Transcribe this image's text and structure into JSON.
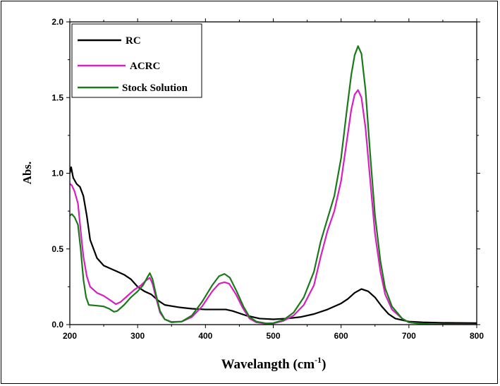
{
  "chart_data": {
    "type": "line",
    "title": "",
    "xlabel": "Wavelangth (cm",
    "xlabel_sup": "-1",
    "xlabel_close": ")",
    "ylabel": "Abs.",
    "xlim": [
      200,
      800
    ],
    "ylim": [
      0,
      2.0
    ],
    "xticks": [
      200,
      300,
      400,
      500,
      600,
      700,
      800
    ],
    "yticks": [
      0.0,
      0.5,
      1.0,
      1.5,
      2.0
    ],
    "xtick_labels": [
      "200",
      "300",
      "400",
      "500",
      "600",
      "700",
      "800"
    ],
    "ytick_labels": [
      "0.0",
      "0.5",
      "1.0",
      "1.5",
      "2.0"
    ],
    "grid": false,
    "legend_position": "top-left",
    "series": [
      {
        "name": "RC",
        "color": "#000000",
        "points": [
          [
            200,
            1.0
          ],
          [
            202,
            1.04
          ],
          [
            205,
            0.97
          ],
          [
            210,
            0.93
          ],
          [
            215,
            0.91
          ],
          [
            220,
            0.85
          ],
          [
            225,
            0.72
          ],
          [
            230,
            0.56
          ],
          [
            240,
            0.44
          ],
          [
            250,
            0.39
          ],
          [
            260,
            0.37
          ],
          [
            270,
            0.35
          ],
          [
            280,
            0.33
          ],
          [
            290,
            0.3
          ],
          [
            300,
            0.25
          ],
          [
            310,
            0.22
          ],
          [
            320,
            0.2
          ],
          [
            330,
            0.16
          ],
          [
            340,
            0.13
          ],
          [
            360,
            0.115
          ],
          [
            380,
            0.105
          ],
          [
            400,
            0.1
          ],
          [
            420,
            0.1
          ],
          [
            430,
            0.1
          ],
          [
            440,
            0.09
          ],
          [
            460,
            0.06
          ],
          [
            480,
            0.04
          ],
          [
            500,
            0.035
          ],
          [
            520,
            0.04
          ],
          [
            540,
            0.05
          ],
          [
            560,
            0.07
          ],
          [
            580,
            0.1
          ],
          [
            600,
            0.14
          ],
          [
            610,
            0.17
          ],
          [
            620,
            0.21
          ],
          [
            630,
            0.235
          ],
          [
            640,
            0.22
          ],
          [
            650,
            0.18
          ],
          [
            660,
            0.12
          ],
          [
            670,
            0.07
          ],
          [
            680,
            0.04
          ],
          [
            700,
            0.02
          ],
          [
            720,
            0.015
          ],
          [
            750,
            0.012
          ],
          [
            800,
            0.01
          ]
        ]
      },
      {
        "name": "ACRC",
        "color": "#d81fbf",
        "points": [
          [
            200,
            0.93
          ],
          [
            203,
            0.92
          ],
          [
            207,
            0.88
          ],
          [
            212,
            0.8
          ],
          [
            216,
            0.62
          ],
          [
            220,
            0.45
          ],
          [
            225,
            0.32
          ],
          [
            230,
            0.25
          ],
          [
            240,
            0.21
          ],
          [
            250,
            0.19
          ],
          [
            260,
            0.16
          ],
          [
            268,
            0.135
          ],
          [
            275,
            0.15
          ],
          [
            285,
            0.19
          ],
          [
            295,
            0.23
          ],
          [
            305,
            0.26
          ],
          [
            312,
            0.29
          ],
          [
            318,
            0.31
          ],
          [
            322,
            0.27
          ],
          [
            327,
            0.18
          ],
          [
            333,
            0.08
          ],
          [
            340,
            0.035
          ],
          [
            350,
            0.018
          ],
          [
            365,
            0.02
          ],
          [
            380,
            0.05
          ],
          [
            395,
            0.12
          ],
          [
            410,
            0.22
          ],
          [
            420,
            0.27
          ],
          [
            428,
            0.28
          ],
          [
            435,
            0.27
          ],
          [
            445,
            0.2
          ],
          [
            455,
            0.11
          ],
          [
            465,
            0.04
          ],
          [
            475,
            0.015
          ],
          [
            490,
            0.005
          ],
          [
            500,
            0.008
          ],
          [
            515,
            0.025
          ],
          [
            530,
            0.06
          ],
          [
            545,
            0.13
          ],
          [
            560,
            0.26
          ],
          [
            570,
            0.45
          ],
          [
            580,
            0.62
          ],
          [
            590,
            0.75
          ],
          [
            600,
            0.95
          ],
          [
            608,
            1.2
          ],
          [
            615,
            1.42
          ],
          [
            620,
            1.52
          ],
          [
            625,
            1.55
          ],
          [
            630,
            1.5
          ],
          [
            636,
            1.3
          ],
          [
            643,
            0.95
          ],
          [
            650,
            0.6
          ],
          [
            658,
            0.35
          ],
          [
            665,
            0.2
          ],
          [
            675,
            0.1
          ],
          [
            690,
            0.04
          ],
          [
            700,
            0.015
          ],
          [
            720,
            0.005
          ],
          [
            740,
            0.002
          ],
          [
            800,
            0.0
          ]
        ]
      },
      {
        "name": "Stock Solution",
        "color": "#1a7a1a",
        "points": [
          [
            200,
            0.72
          ],
          [
            203,
            0.73
          ],
          [
            207,
            0.71
          ],
          [
            212,
            0.66
          ],
          [
            216,
            0.5
          ],
          [
            220,
            0.3
          ],
          [
            224,
            0.18
          ],
          [
            228,
            0.13
          ],
          [
            240,
            0.125
          ],
          [
            250,
            0.12
          ],
          [
            258,
            0.105
          ],
          [
            265,
            0.085
          ],
          [
            270,
            0.09
          ],
          [
            280,
            0.13
          ],
          [
            290,
            0.18
          ],
          [
            300,
            0.22
          ],
          [
            308,
            0.26
          ],
          [
            314,
            0.31
          ],
          [
            318,
            0.34
          ],
          [
            322,
            0.3
          ],
          [
            327,
            0.2
          ],
          [
            333,
            0.09
          ],
          [
            340,
            0.035
          ],
          [
            350,
            0.015
          ],
          [
            365,
            0.02
          ],
          [
            380,
            0.06
          ],
          [
            395,
            0.15
          ],
          [
            410,
            0.26
          ],
          [
            420,
            0.32
          ],
          [
            428,
            0.335
          ],
          [
            436,
            0.31
          ],
          [
            446,
            0.22
          ],
          [
            456,
            0.12
          ],
          [
            465,
            0.05
          ],
          [
            475,
            0.02
          ],
          [
            490,
            0.008
          ],
          [
            500,
            0.01
          ],
          [
            515,
            0.03
          ],
          [
            530,
            0.08
          ],
          [
            545,
            0.18
          ],
          [
            560,
            0.35
          ],
          [
            570,
            0.55
          ],
          [
            580,
            0.7
          ],
          [
            590,
            0.85
          ],
          [
            600,
            1.1
          ],
          [
            608,
            1.4
          ],
          [
            615,
            1.65
          ],
          [
            620,
            1.78
          ],
          [
            625,
            1.84
          ],
          [
            630,
            1.79
          ],
          [
            636,
            1.55
          ],
          [
            643,
            1.12
          ],
          [
            650,
            0.72
          ],
          [
            658,
            0.42
          ],
          [
            665,
            0.24
          ],
          [
            675,
            0.12
          ],
          [
            690,
            0.04
          ],
          [
            700,
            0.015
          ],
          [
            720,
            0.005
          ],
          [
            740,
            0.002
          ],
          [
            800,
            0.0
          ]
        ]
      }
    ]
  }
}
